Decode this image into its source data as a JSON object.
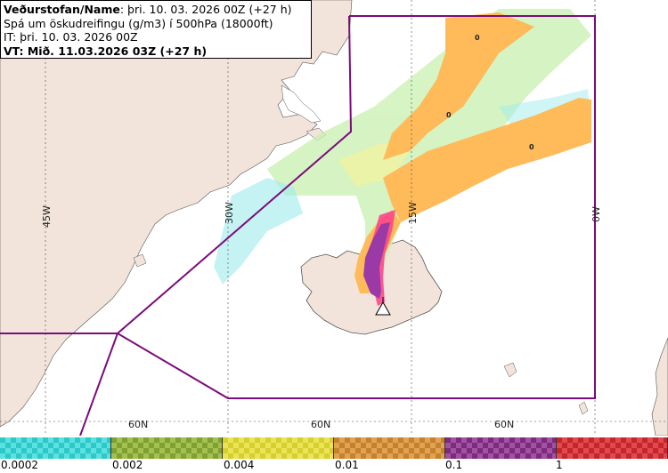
{
  "header": {
    "name_label": "Veðurstofan/Name",
    "name_value": ": þri. 10. 03. 2026 00Z (+27 h)",
    "product": "Spá um öskudreifingu (g/m3) í 500hPa (18000ft)",
    "it_line": "IT: þri. 10. 03. 2026 00Z",
    "vt_line": "VT: Mið. 11.03.2026 03Z (+27 h)"
  },
  "map": {
    "meridian_labels": [
      "45W",
      "30W",
      "15W",
      "0W"
    ],
    "parallel_labels": [
      "60N",
      "60N",
      "60N"
    ],
    "ash_zero_labels": [
      "0",
      "0",
      "0"
    ],
    "colors": {
      "land": "#f2e4da",
      "sea": "#ffffff",
      "boundary": "#7b0c7b",
      "ash_orange": "#ffba5a",
      "ash_purple": "#9b3aa6",
      "ash_pink": "#ff3e8c",
      "ash_light_green": "#c8f0b0",
      "ash_cyan": "#7fe6e8",
      "ash_yellow": "#f0f07a"
    }
  },
  "legend": {
    "bins": [
      {
        "color": "#2cc9c9",
        "alt": "#5fe0e0"
      },
      {
        "color": "#7fa032",
        "alt": "#a4c14f"
      },
      {
        "color": "#d6cf2c",
        "alt": "#ebe45a"
      },
      {
        "color": "#c8812b",
        "alt": "#e0a255"
      },
      {
        "color": "#7e2a7e",
        "alt": "#a152a1"
      },
      {
        "color": "#c4262b",
        "alt": "#e04a4f"
      }
    ],
    "ticks": [
      "0.0002",
      "0.002",
      "0.004",
      "0.01",
      "0.1",
      "1"
    ]
  }
}
